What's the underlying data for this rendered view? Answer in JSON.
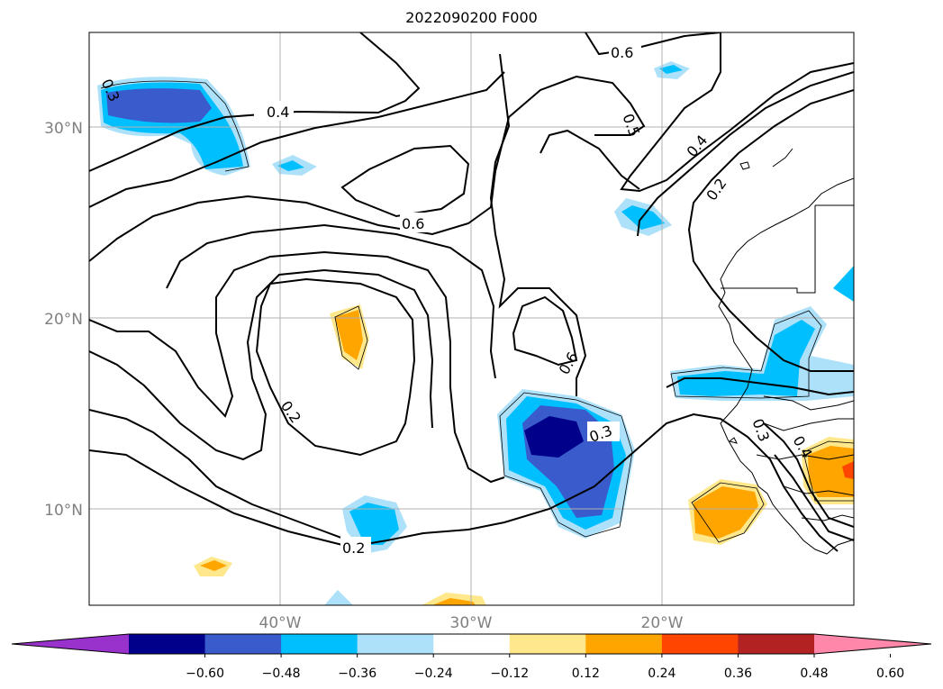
{
  "title": "2022090200 F000",
  "map": {
    "lon_range": [
      -50,
      -10
    ],
    "lat_range": [
      5,
      35
    ],
    "lat_ticks": [
      "30°N",
      "20°N",
      "10°N"
    ],
    "lon_ticks": [
      "40°W",
      "30°W",
      "20°W"
    ],
    "gridlines": true,
    "contour_labels": [
      "0.3",
      "0.4",
      "0.6",
      "0.5",
      "0.4",
      "0.2",
      "0.6",
      "0.2",
      "0.6",
      "0.3",
      "0.2",
      "0.3",
      "0.4"
    ]
  },
  "colorbar": {
    "colors": [
      "#9932CC",
      "#00008B",
      "#3A5BCC",
      "#00BFFF",
      "#ADE1FA",
      "#FFFFFF",
      "#FFE88C",
      "#FFA500",
      "#FF4500",
      "#B22222",
      "#FF88AA"
    ],
    "tick_labels": [
      "−0.60",
      "−0.48",
      "−0.36",
      "−0.24",
      "−0.12",
      "0.12",
      "0.24",
      "0.36",
      "0.48",
      "0.60"
    ],
    "extend": "both"
  }
}
